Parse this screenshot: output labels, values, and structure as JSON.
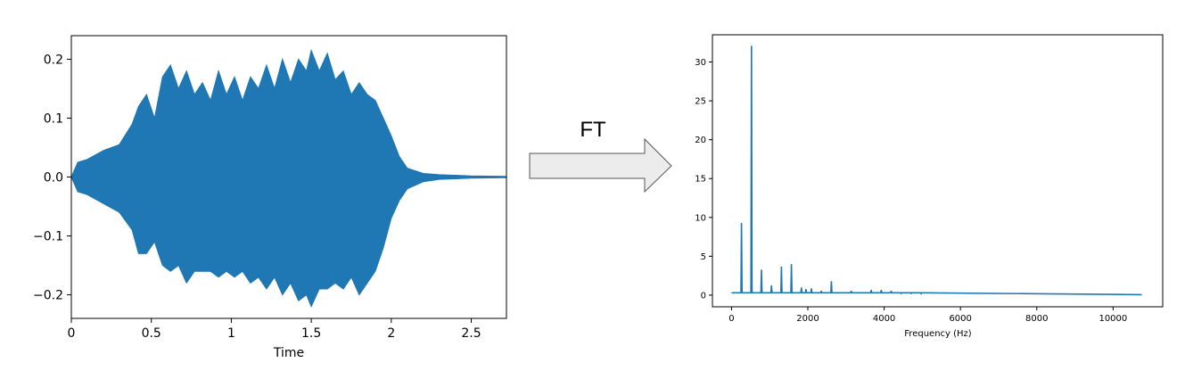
{
  "colors": {
    "series": "#1f77b4",
    "arrow_fill": "#ececec",
    "arrow_stroke": "#555555",
    "axes": "#000000"
  },
  "arrow": {
    "label": "FT"
  },
  "chart_data": [
    {
      "type": "area",
      "xlabel": "Time",
      "ylabel": "",
      "xlim": [
        0,
        2.72
      ],
      "ylim": [
        -0.24,
        0.24
      ],
      "xticks": [
        0,
        0.5,
        1,
        1.5,
        2,
        2.5
      ],
      "xtick_labels": [
        "0",
        "0.5",
        "1",
        "1.5",
        "2",
        "2.5"
      ],
      "yticks": [
        0.2,
        0.1,
        0.0,
        -0.1,
        -0.2
      ],
      "ytick_labels": [
        "0.2",
        "0.1",
        "0.0",
        "−0.1",
        "−0.2"
      ],
      "grid": false,
      "envelope": {
        "t": [
          0,
          0.04,
          0.1,
          0.2,
          0.3,
          0.38,
          0.42,
          0.47,
          0.52,
          0.57,
          0.62,
          0.67,
          0.72,
          0.77,
          0.82,
          0.87,
          0.92,
          0.97,
          1.02,
          1.07,
          1.12,
          1.17,
          1.22,
          1.27,
          1.32,
          1.37,
          1.42,
          1.47,
          1.5,
          1.55,
          1.6,
          1.65,
          1.7,
          1.75,
          1.8,
          1.85,
          1.9,
          1.95,
          2.0,
          2.05,
          2.1,
          2.2,
          2.3,
          2.4,
          2.5,
          2.72
        ],
        "upper": [
          0.0,
          0.025,
          0.03,
          0.045,
          0.055,
          0.09,
          0.12,
          0.14,
          0.1,
          0.17,
          0.19,
          0.15,
          0.18,
          0.14,
          0.16,
          0.13,
          0.18,
          0.14,
          0.17,
          0.13,
          0.17,
          0.15,
          0.19,
          0.15,
          0.2,
          0.16,
          0.2,
          0.18,
          0.215,
          0.18,
          0.21,
          0.165,
          0.18,
          0.14,
          0.16,
          0.14,
          0.13,
          0.1,
          0.07,
          0.035,
          0.015,
          0.006,
          0.004,
          0.003,
          0.002,
          0.001
        ],
        "lower": [
          0.0,
          -0.025,
          -0.03,
          -0.045,
          -0.06,
          -0.09,
          -0.13,
          -0.13,
          -0.11,
          -0.15,
          -0.16,
          -0.15,
          -0.18,
          -0.16,
          -0.16,
          -0.16,
          -0.17,
          -0.16,
          -0.17,
          -0.16,
          -0.18,
          -0.17,
          -0.19,
          -0.17,
          -0.2,
          -0.18,
          -0.21,
          -0.2,
          -0.22,
          -0.19,
          -0.19,
          -0.18,
          -0.19,
          -0.17,
          -0.2,
          -0.18,
          -0.16,
          -0.12,
          -0.07,
          -0.04,
          -0.02,
          -0.008,
          -0.004,
          -0.003,
          -0.002,
          -0.001
        ]
      }
    },
    {
      "type": "line",
      "xlabel": "Frequency (Hz)",
      "ylabel": "",
      "xlim": [
        -500,
        11300
      ],
      "ylim": [
        -1.5,
        33.5
      ],
      "xticks": [
        0,
        2000,
        4000,
        6000,
        8000,
        10000
      ],
      "xtick_labels": [
        "0",
        "2000",
        "4000",
        "6000",
        "8000",
        "10000"
      ],
      "yticks": [
        0,
        5,
        10,
        15,
        20,
        25,
        30
      ],
      "ytick_labels": [
        "0",
        "5",
        "10",
        "15",
        "20",
        "25",
        "30"
      ],
      "grid": false,
      "baseline": 0.3,
      "x_max": 10750,
      "peaks": [
        {
          "freq": 262,
          "amp": 9.2
        },
        {
          "freq": 523,
          "amp": 32.0
        },
        {
          "freq": 785,
          "amp": 3.2
        },
        {
          "freq": 1046,
          "amp": 1.2
        },
        {
          "freq": 1308,
          "amp": 3.6
        },
        {
          "freq": 1570,
          "amp": 3.9
        },
        {
          "freq": 1831,
          "amp": 0.9
        },
        {
          "freq": 1950,
          "amp": 0.7
        },
        {
          "freq": 2093,
          "amp": 0.8
        },
        {
          "freq": 2354,
          "amp": 0.5
        },
        {
          "freq": 2616,
          "amp": 1.7
        },
        {
          "freq": 2878,
          "amp": 0.3
        },
        {
          "freq": 3139,
          "amp": 0.5
        },
        {
          "freq": 3400,
          "amp": 0.3
        },
        {
          "freq": 3662,
          "amp": 0.6
        },
        {
          "freq": 3924,
          "amp": 0.6
        },
        {
          "freq": 4185,
          "amp": 0.5
        },
        {
          "freq": 4447,
          "amp": 0.2
        },
        {
          "freq": 4708,
          "amp": 0.2
        },
        {
          "freq": 4970,
          "amp": 0.15
        }
      ]
    }
  ]
}
